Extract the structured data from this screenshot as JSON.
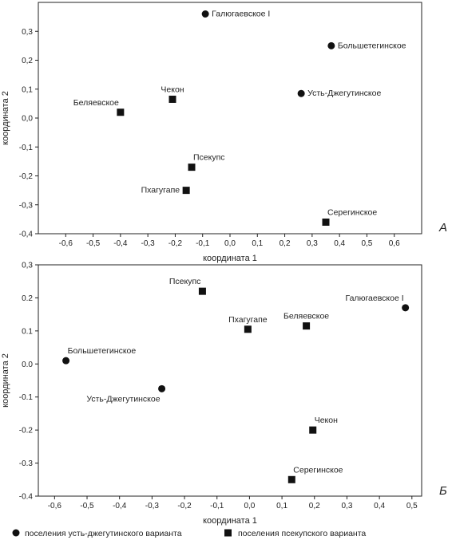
{
  "legend": {
    "circle_label": "поселения усть-джегутинского варианта",
    "square_label": "поселения псекупского варианта"
  },
  "chart_data": [
    {
      "type": "scatter",
      "panel": "А",
      "xlabel": "координата 1",
      "ylabel": "координата 2",
      "xlim": [
        -0.7,
        0.7
      ],
      "ylim": [
        -0.4,
        0.4
      ],
      "x_ticks": [
        "-0,6",
        "-0,5",
        "-0,4",
        "-0,3",
        "-0,2",
        "-0,1",
        "0,0",
        "0,1",
        "0,2",
        "0,3",
        "0,4",
        "0,5",
        "0,6"
      ],
      "x_tick_values": [
        -0.6,
        -0.5,
        -0.4,
        -0.3,
        -0.2,
        -0.1,
        0.0,
        0.1,
        0.2,
        0.3,
        0.4,
        0.5,
        0.6
      ],
      "y_ticks": [
        "0,3",
        "0,2",
        "0,1",
        "0,0",
        "-0,1",
        "-0,2",
        "-0,3",
        "-0,4"
      ],
      "y_tick_values": [
        0.3,
        0.2,
        0.1,
        0.0,
        -0.1,
        -0.2,
        -0.3,
        -0.4
      ],
      "grid": false,
      "points": [
        {
          "label": "Галюгаевское I",
          "x": -0.09,
          "y": 0.36,
          "marker": "circle",
          "label_pos": "right"
        },
        {
          "label": "Большетегинское",
          "x": 0.37,
          "y": 0.25,
          "marker": "circle",
          "label_pos": "right"
        },
        {
          "label": "Усть-Джегутинское",
          "x": 0.26,
          "y": 0.085,
          "marker": "circle",
          "label_pos": "right"
        },
        {
          "label": "Чекон",
          "x": -0.21,
          "y": 0.065,
          "marker": "square",
          "label_pos": "above"
        },
        {
          "label": "Беляевское",
          "x": -0.4,
          "y": 0.02,
          "marker": "square",
          "label_pos": "above-left"
        },
        {
          "label": "Псекупс",
          "x": -0.14,
          "y": -0.17,
          "marker": "square",
          "label_pos": "above-right"
        },
        {
          "label": "Пхагугапе",
          "x": -0.16,
          "y": -0.25,
          "marker": "square",
          "label_pos": "left"
        },
        {
          "label": "Серегинское",
          "x": 0.35,
          "y": -0.36,
          "marker": "square",
          "label_pos": "above-right"
        }
      ]
    },
    {
      "type": "scatter",
      "panel": "Б",
      "xlabel": "координата 1",
      "ylabel": "координата 2",
      "xlim": [
        -0.65,
        0.53
      ],
      "ylim": [
        -0.4,
        0.3
      ],
      "x_ticks": [
        "-0,6",
        "-0,5",
        "-0,4",
        "-0,3",
        "-0,2",
        "-0,1",
        "0,0",
        "0,1",
        "0,2",
        "0,3",
        "0,4",
        "0,5"
      ],
      "x_tick_values": [
        -0.6,
        -0.5,
        -0.4,
        -0.3,
        -0.2,
        -0.1,
        0.0,
        0.1,
        0.2,
        0.3,
        0.4,
        0.5
      ],
      "y_ticks": [
        "0,3",
        "0.2",
        "0.1",
        "0.0",
        "-0.1",
        "-0.2",
        "-0.3",
        "-0.4"
      ],
      "y_tick_values": [
        0.3,
        0.2,
        0.1,
        0.0,
        -0.1,
        -0.2,
        -0.3,
        -0.4
      ],
      "grid": false,
      "points": [
        {
          "label": "Псекупс",
          "x": -0.145,
          "y": 0.22,
          "marker": "square",
          "label_pos": "above-left"
        },
        {
          "label": "Галюгаевское I",
          "x": 0.48,
          "y": 0.17,
          "marker": "circle",
          "label_pos": "above-left"
        },
        {
          "label": "Пхагугапе",
          "x": -0.005,
          "y": 0.105,
          "marker": "square",
          "label_pos": "above"
        },
        {
          "label": "Беляевское",
          "x": 0.175,
          "y": 0.115,
          "marker": "square",
          "label_pos": "above"
        },
        {
          "label": "Большетегинское",
          "x": -0.565,
          "y": 0.01,
          "marker": "circle",
          "label_pos": "above-right"
        },
        {
          "label": "Усть-Джегутинское",
          "x": -0.27,
          "y": -0.075,
          "marker": "circle",
          "label_pos": "below-left"
        },
        {
          "label": "Чекон",
          "x": 0.195,
          "y": -0.2,
          "marker": "square",
          "label_pos": "above-right"
        },
        {
          "label": "Серегинское",
          "x": 0.13,
          "y": -0.35,
          "marker": "square",
          "label_pos": "above-right"
        }
      ]
    }
  ]
}
